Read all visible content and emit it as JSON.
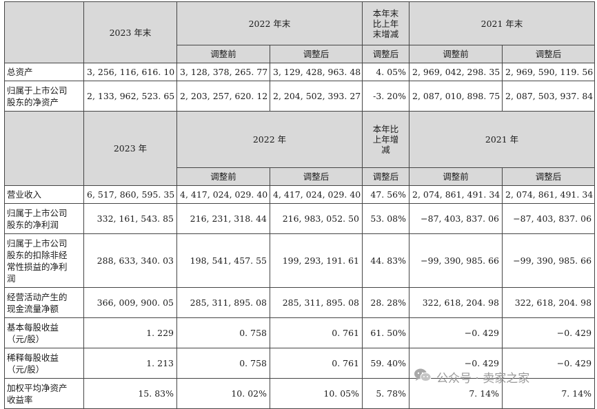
{
  "header1": {
    "y2023": "2023 年末",
    "y2022": "2022 年末",
    "change": [
      "本年末",
      "比上年",
      "末增减"
    ],
    "y2021": "2021 年末",
    "before": "调整前",
    "after": "调整后"
  },
  "header2": {
    "y2023": "2023 年",
    "y2022": "2022 年",
    "change": [
      "本年比",
      "上年增",
      "减"
    ],
    "y2021": "2021 年",
    "before": "调整前",
    "after": "调整后"
  },
  "rows1": [
    {
      "label": [
        "总资产"
      ],
      "v2023": "3, 256, 116, 616. 10",
      "v2022b": "3, 128, 378, 265. 77",
      "v2022a": "3, 129, 428, 963. 48",
      "chg": "4. 05%",
      "v2021b": "2, 969, 042, 298. 35",
      "v2021a": "2, 969, 590, 119. 56"
    },
    {
      "label": [
        "归属于上市公司",
        "股东的净资产"
      ],
      "v2023": "2, 133, 962, 523. 65",
      "v2022b": "2, 203, 257, 620. 12",
      "v2022a": "2, 204, 502, 393. 27",
      "chg": "-3. 20%",
      "v2021b": "2, 087, 010, 898. 75",
      "v2021a": "2, 087, 503, 937. 84"
    }
  ],
  "rows2": [
    {
      "label": [
        "营业收入"
      ],
      "v2023": "6, 517, 860, 595. 35",
      "v2022b": "4, 417, 024, 029. 40",
      "v2022a": "4, 417, 024, 029. 40",
      "chg": "47. 56%",
      "v2021b": "2, 074, 861, 491. 34",
      "v2021a": "2, 074, 861, 491. 34"
    },
    {
      "label": [
        "归属于上市公司",
        "股东的净利润"
      ],
      "v2023": "332, 161, 543. 85",
      "v2022b": "216, 231, 318. 44",
      "v2022a": "216, 983, 052. 50",
      "chg": "53. 08%",
      "v2021b": "−87, 403, 837. 06",
      "v2021a": "−87, 403, 837. 06"
    },
    {
      "label": [
        "归属于上市公司",
        "股东的扣除非经",
        "常性损益的净利",
        "润"
      ],
      "v2023": "288, 633, 340. 03",
      "v2022b": "198, 541, 457. 55",
      "v2022a": "199, 293, 191. 61",
      "chg": "44. 83%",
      "v2021b": "−99, 390, 985. 66",
      "v2021a": "−99, 390, 985. 66"
    },
    {
      "label": [
        "经营活动产生的",
        "现金流量净额"
      ],
      "v2023": "366, 009, 900. 05",
      "v2022b": "285, 311, 895. 08",
      "v2022a": "285, 311, 895. 08",
      "chg": "28. 28%",
      "v2021b": "322, 618, 204. 98",
      "v2021a": "322, 618, 204. 98"
    },
    {
      "label": [
        "基本每股收益",
        "（元/股）"
      ],
      "v2023": "1. 229",
      "v2022b": "0. 758",
      "v2022a": "0. 761",
      "chg": "61. 50%",
      "v2021b": "−0. 429",
      "v2021a": "−0. 429"
    },
    {
      "label": [
        "稀释每股收益",
        "（元/股）"
      ],
      "v2023": "1. 213",
      "v2022b": "0. 758",
      "v2022a": "0. 761",
      "chg": "59. 40%",
      "v2021b": "−0. 429",
      "v2021a": "−0. 429"
    },
    {
      "label": [
        "加权平均净资产",
        "收益率"
      ],
      "v2023": "15. 83%",
      "v2022b": "10. 02%",
      "v2022a": "10. 05%",
      "chg": "5. 78%",
      "v2021b": "7. 14%",
      "v2021a": "7. 14%"
    }
  ],
  "watermark": {
    "text": "公众号 · 卖家之家",
    "icon": "wechat-icon"
  }
}
